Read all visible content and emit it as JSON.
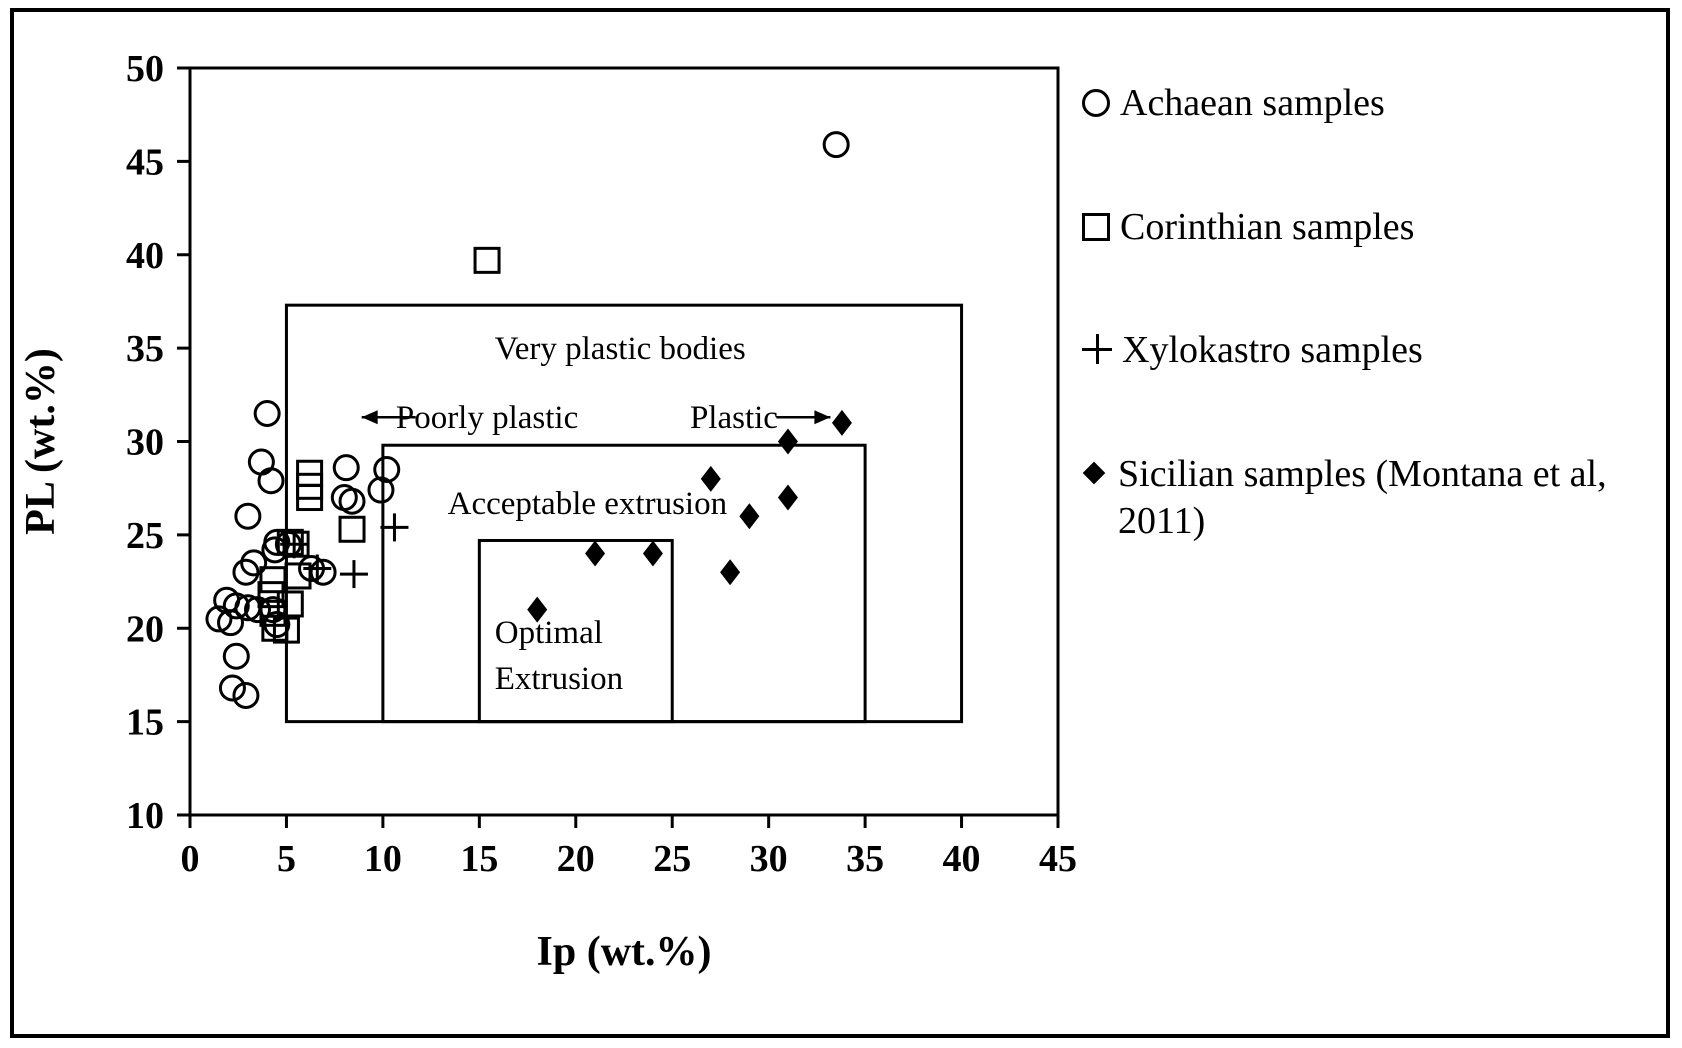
{
  "page": {
    "background": "#ffffff",
    "border_color": "#000000",
    "ink_color": "#000000"
  },
  "chart_data": {
    "type": "scatter",
    "title": "",
    "xlabel": "Ip (wt.%)",
    "ylabel": "PL (wt.%)",
    "xlim": [
      0,
      45
    ],
    "ylim": [
      10,
      50
    ],
    "xticks": [
      0,
      5,
      10,
      15,
      20,
      25,
      30,
      35,
      40,
      45
    ],
    "yticks": [
      10,
      15,
      20,
      25,
      30,
      35,
      40,
      45,
      50
    ],
    "grid": false,
    "legend_position": "right",
    "series": [
      {
        "name": "Achaean samples",
        "marker": "circle",
        "points": [
          [
            33.5,
            45.9
          ],
          [
            4.0,
            31.5
          ],
          [
            3.7,
            28.9
          ],
          [
            4.2,
            27.9
          ],
          [
            3.0,
            26.0
          ],
          [
            8.1,
            28.6
          ],
          [
            10.2,
            28.5
          ],
          [
            8.0,
            27.0
          ],
          [
            9.9,
            27.4
          ],
          [
            8.4,
            26.8
          ],
          [
            4.5,
            24.6
          ],
          [
            5.1,
            24.5
          ],
          [
            4.4,
            24.2
          ],
          [
            3.3,
            23.5
          ],
          [
            2.9,
            23.0
          ],
          [
            6.3,
            23.2
          ],
          [
            6.9,
            23.0
          ],
          [
            1.9,
            21.5
          ],
          [
            2.4,
            21.2
          ],
          [
            3.0,
            21.1
          ],
          [
            3.5,
            21.0
          ],
          [
            4.3,
            21.0
          ],
          [
            1.5,
            20.5
          ],
          [
            2.1,
            20.3
          ],
          [
            4.5,
            20.2
          ],
          [
            2.4,
            18.5
          ],
          [
            2.2,
            16.8
          ],
          [
            2.9,
            16.4
          ]
        ]
      },
      {
        "name": "Corinthian samples",
        "marker": "square",
        "points": [
          [
            15.4,
            39.7
          ],
          [
            6.2,
            28.3
          ],
          [
            6.2,
            27.6
          ],
          [
            6.2,
            27.0
          ],
          [
            8.4,
            25.3
          ],
          [
            5.2,
            24.6
          ],
          [
            5.5,
            24.5
          ],
          [
            4.3,
            22.6
          ],
          [
            5.6,
            22.8
          ],
          [
            4.2,
            21.8
          ],
          [
            5.2,
            21.3
          ],
          [
            4.3,
            20.8
          ],
          [
            4.4,
            20.0
          ],
          [
            5.0,
            19.9
          ]
        ]
      },
      {
        "name": "Xylokastro samples",
        "marker": "plus",
        "points": [
          [
            5.4,
            24.5
          ],
          [
            6.6,
            23.2
          ],
          [
            8.5,
            22.9
          ],
          [
            10.6,
            25.4
          ]
        ]
      },
      {
        "name": "Sicilian samples (Montana et al, 2011)",
        "marker": "diamond",
        "points": [
          [
            18.0,
            21.0
          ],
          [
            21.0,
            24.0
          ],
          [
            24.0,
            24.0
          ],
          [
            27.0,
            28.0
          ],
          [
            28.0,
            23.0
          ],
          [
            29.0,
            26.0
          ],
          [
            31.0,
            30.0
          ],
          [
            31.0,
            27.0
          ],
          [
            33.8,
            31.0
          ]
        ]
      }
    ],
    "regions": [
      {
        "name": "very-plastic-bodies",
        "x": [
          5,
          40
        ],
        "y": [
          15,
          37.3
        ],
        "label": "Very plastic bodies",
        "label_pos": [
          22.3,
          35.0
        ]
      },
      {
        "name": "acceptable-extrusion",
        "x": [
          10,
          35
        ],
        "y": [
          15,
          29.8
        ],
        "label": "Acceptable extrusion",
        "label_pos": [
          20.6,
          26.7
        ]
      },
      {
        "name": "optimal-extrusion",
        "x": [
          15,
          25
        ],
        "y": [
          15,
          24.7
        ],
        "label_lines": [
          "Optimal",
          "Extrusion"
        ],
        "label_pos": [
          15.8,
          19.8
        ]
      }
    ],
    "annotations": [
      {
        "text": "Poorly plastic",
        "pos": [
          15.4,
          31.3
        ]
      },
      {
        "text": "Plastic",
        "pos": [
          28.2,
          31.3
        ]
      }
    ],
    "arrows": [
      {
        "from": [
          11.7,
          31.3
        ],
        "to": [
          8.9,
          31.3
        ]
      },
      {
        "from": [
          30.4,
          31.3
        ],
        "to": [
          33.2,
          31.3
        ]
      }
    ]
  }
}
